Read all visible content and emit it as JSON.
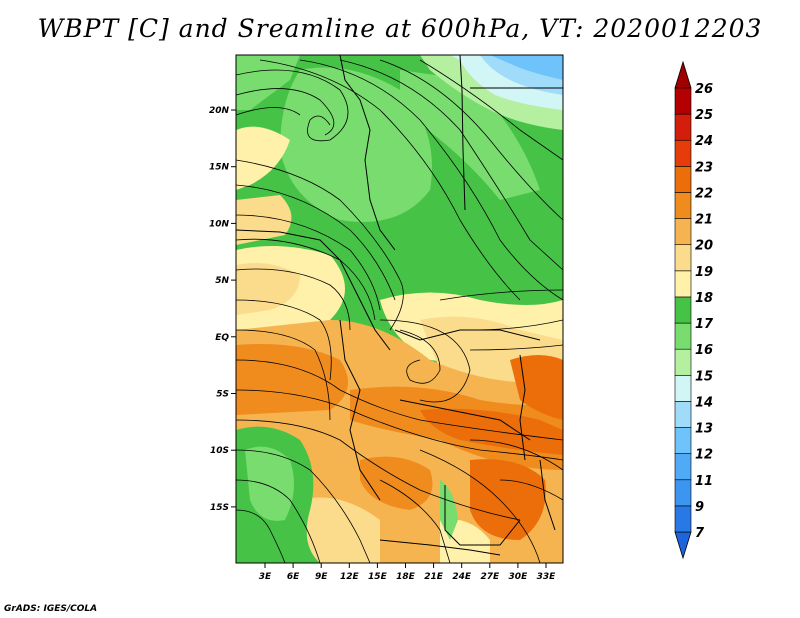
{
  "title": "WBPT [C] and Sreamline at 600hPa, VT: 2020012203",
  "credit": "GrADS: IGES/COLA",
  "map": {
    "lat_ticks": [
      "20N",
      "15N",
      "10N",
      "5N",
      "EQ",
      "5S",
      "10S",
      "15S"
    ],
    "lon_ticks": [
      "3E",
      "6E",
      "9E",
      "12E",
      "15E",
      "18E",
      "21E",
      "24E",
      "27E",
      "30E",
      "33E"
    ],
    "field": "wet-bulb potential temperature",
    "level": "600hPa"
  },
  "colorbar": {
    "labels": [
      "7",
      "9",
      "11",
      "12",
      "13",
      "14",
      "15",
      "16",
      "17",
      "18",
      "19",
      "20",
      "21",
      "22",
      "23",
      "24",
      "25",
      "26"
    ],
    "colors": [
      "#1e64dc",
      "#2878e6",
      "#3c96f0",
      "#50aaf5",
      "#6ec3fa",
      "#a0dcfa",
      "#d2f5f5",
      "#b4f0a0",
      "#78dc6e",
      "#46c346",
      "#fff0aa",
      "#fadc8c",
      "#f5b450",
      "#f08c1e",
      "#eb6e0a",
      "#e63c0a",
      "#d21e0a",
      "#b40000",
      "#a00000"
    ]
  }
}
